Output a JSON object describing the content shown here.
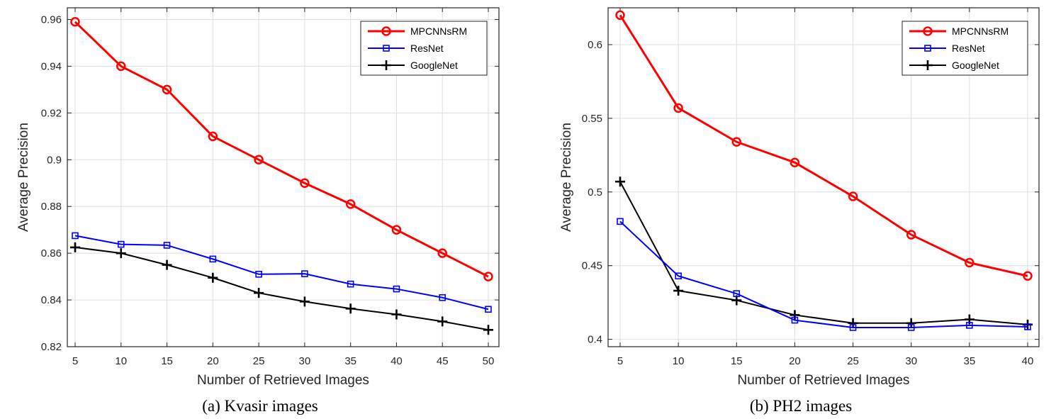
{
  "chart_data": [
    {
      "type": "line",
      "caption": "(a) Kvasir images",
      "xlabel": "Number of Retrieved Images",
      "ylabel": "Average Precision",
      "x": [
        5,
        10,
        15,
        20,
        25,
        30,
        35,
        40,
        45,
        50
      ],
      "xticks": [
        "5",
        "10",
        "15",
        "20",
        "25",
        "30",
        "35",
        "40",
        "45",
        "50"
      ],
      "xlim": [
        5,
        50
      ],
      "ylim": [
        0.82,
        0.965
      ],
      "yticks": [
        0.82,
        0.84,
        0.86,
        0.88,
        0.9,
        0.92,
        0.94,
        0.96
      ],
      "ytick_labels": [
        "0.82",
        "0.84",
        "0.86",
        "0.88",
        "0.9",
        "0.92",
        "0.94",
        "0.96"
      ],
      "grid": true,
      "legend_position": "top-right",
      "series": [
        {
          "name": "MPCNNsRM",
          "color": "#ff0000",
          "marker": "circle",
          "values": [
            0.959,
            0.94,
            0.93,
            0.91,
            0.9,
            0.89,
            0.881,
            0.87,
            0.86,
            0.85
          ]
        },
        {
          "name": "ResNet",
          "color": "#0000ff",
          "marker": "square",
          "values": [
            0.8675,
            0.8638,
            0.8634,
            0.8575,
            0.851,
            0.8512,
            0.8468,
            0.8447,
            0.841,
            0.836
          ]
        },
        {
          "name": "GoogleNet",
          "color": "#000000",
          "marker": "plus",
          "values": [
            0.8625,
            0.86,
            0.855,
            0.8495,
            0.843,
            0.8393,
            0.8363,
            0.8338,
            0.8308,
            0.8272
          ]
        }
      ]
    },
    {
      "type": "line",
      "caption": "(b)  PH2 images",
      "xlabel": "Number of Retrieved Images",
      "ylabel": "Average Precision",
      "x": [
        5,
        10,
        15,
        20,
        25,
        30,
        35,
        40
      ],
      "xticks": [
        "5",
        "10",
        "15",
        "20",
        "25",
        "30",
        "35",
        "40"
      ],
      "xlim": [
        5,
        40
      ],
      "ylim": [
        0.395,
        0.625
      ],
      "yticks": [
        0.4,
        0.45,
        0.5,
        0.55,
        0.6
      ],
      "ytick_labels": [
        "0.4",
        "0.45",
        "0.5",
        "0.55",
        "0.6"
      ],
      "grid": true,
      "legend_position": "top-right",
      "series": [
        {
          "name": "MPCNNsRM",
          "color": "#ff0000",
          "marker": "circle",
          "values": [
            0.62,
            0.557,
            0.534,
            0.52,
            0.497,
            0.471,
            0.452,
            0.443
          ]
        },
        {
          "name": "ResNet",
          "color": "#0000ff",
          "marker": "square",
          "values": [
            0.48,
            0.443,
            0.431,
            0.413,
            0.408,
            0.408,
            0.4095,
            0.4085
          ]
        },
        {
          "name": "GoogleNet",
          "color": "#000000",
          "marker": "plus",
          "values": [
            0.507,
            0.433,
            0.4265,
            0.4165,
            0.411,
            0.411,
            0.4135,
            0.41
          ]
        }
      ]
    }
  ]
}
